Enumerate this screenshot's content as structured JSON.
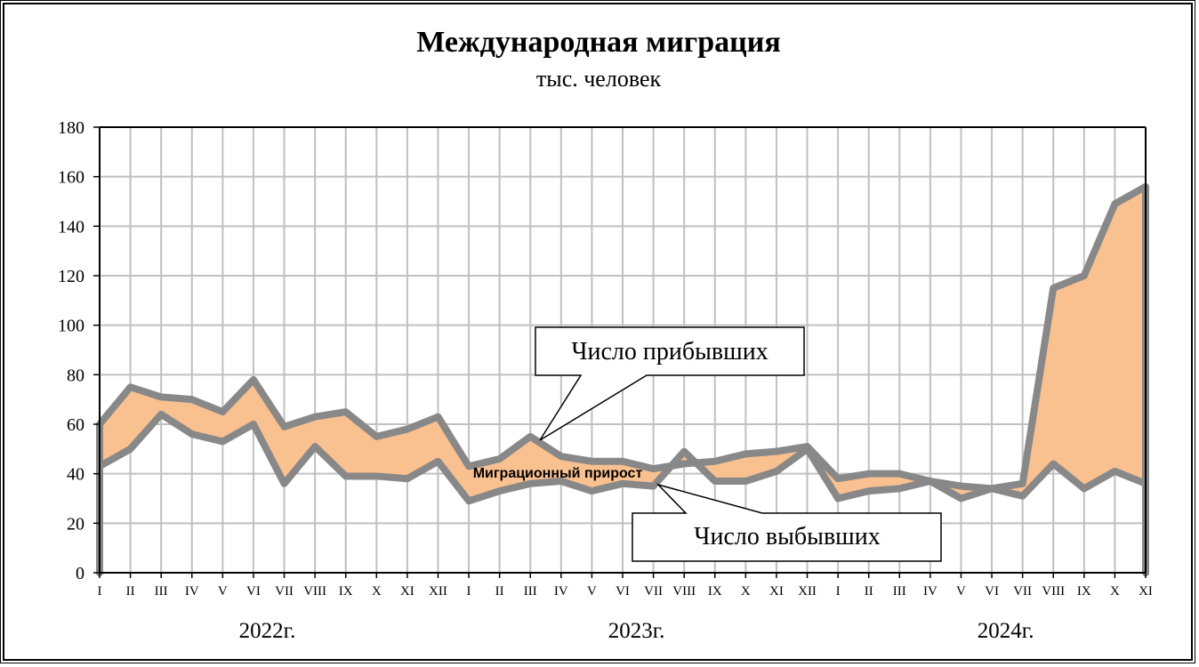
{
  "chart_data": {
    "type": "area",
    "title": "Международная миграция",
    "subtitle": "тыс. человек",
    "xlabel": "",
    "ylabel": "",
    "ylim": [
      0,
      180
    ],
    "yticks": [
      0,
      20,
      40,
      60,
      80,
      100,
      120,
      140,
      160,
      180
    ],
    "grid": true,
    "categories": [
      "I",
      "II",
      "III",
      "IV",
      "V",
      "VI",
      "VII",
      "VIII",
      "IX",
      "X",
      "XI",
      "XII",
      "I",
      "II",
      "III",
      "IV",
      "V",
      "VI",
      "VII",
      "VIII",
      "IX",
      "X",
      "XI",
      "XII",
      "I",
      "II",
      "III",
      "IV",
      "V",
      "VI",
      "VII",
      "VIII",
      "IX",
      "X",
      "XI"
    ],
    "year_labels": [
      {
        "label": "2022г.",
        "category_center": 6
      },
      {
        "label": "2023г.",
        "category_center": 18
      },
      {
        "label": "2024г.",
        "category_center": 30
      }
    ],
    "series": [
      {
        "name": "Число прибывших",
        "values": [
          60,
          75,
          71,
          70,
          65,
          78,
          59,
          63,
          65,
          55,
          58,
          63,
          43,
          46,
          55,
          47,
          45,
          45,
          42,
          44,
          45,
          48,
          49,
          51,
          38,
          40,
          40,
          37,
          35,
          34,
          36,
          115,
          120,
          149,
          156
        ],
        "color": "#888888"
      },
      {
        "name": "Число выбывших",
        "values": [
          43,
          50,
          64,
          56,
          53,
          60,
          36,
          51,
          39,
          39,
          38,
          45,
          29,
          33,
          36,
          37,
          33,
          36,
          35,
          49,
          37,
          37,
          41,
          50,
          30,
          33,
          34,
          37,
          30,
          34,
          31,
          44,
          34,
          41,
          36
        ],
        "color": "#888888"
      }
    ],
    "fill_between": {
      "name": "Миграционный прирост",
      "color": "#f9c090"
    },
    "annotations": [
      {
        "text": "Число прибывших",
        "series": 0
      },
      {
        "text": "Число выбывших",
        "series": 1
      },
      {
        "text": "Миграционный прирост",
        "series": null
      }
    ]
  }
}
